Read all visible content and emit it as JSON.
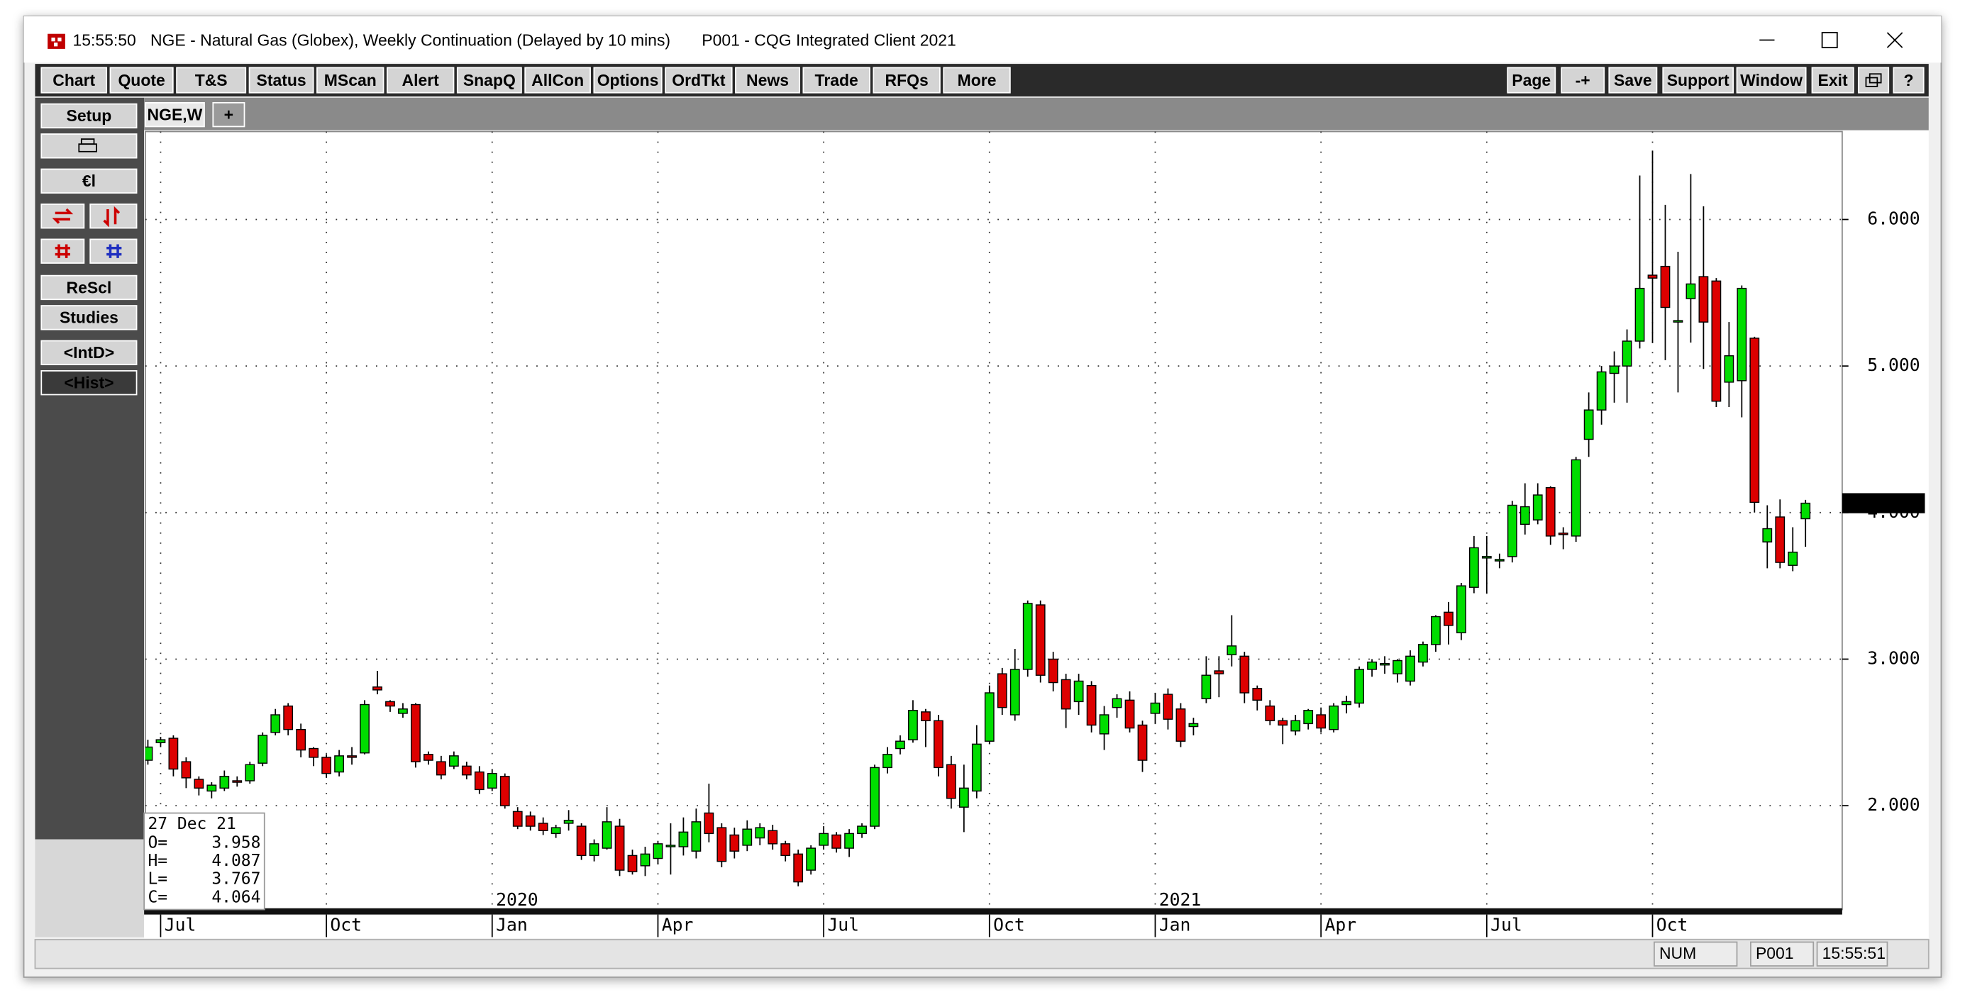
{
  "window": {
    "time": "15:55:50",
    "title": "NGE - Natural Gas (Globex), Weekly Continuation (Delayed by 10 mins)",
    "client": "P001 - CQG Integrated Client 2021"
  },
  "toolbar": {
    "left": [
      "Chart",
      "Quote",
      "T&S",
      "Status",
      "MScan",
      "Alert",
      "SnapQ",
      "AllCon",
      "Options",
      "OrdTkt",
      "News",
      "Trade",
      "RFQs",
      "More"
    ],
    "right": [
      "Page",
      "-+",
      "Save",
      "Support",
      "Window",
      "Exit"
    ]
  },
  "sidebar": [
    "Setup",
    "€l",
    "ReScl",
    "Studies",
    "<IntD>",
    "<Hist>"
  ],
  "tabs": [
    "NGE,W",
    "+"
  ],
  "status": [
    "NUM",
    "P001",
    "15:55:51"
  ],
  "chart_data": {
    "type": "candlestick",
    "up_color": "#00dd00",
    "down_color": "#dd0000",
    "ylim": [
      1.3,
      6.6
    ],
    "yticks": [
      {
        "value": 2,
        "label": "2.000"
      },
      {
        "value": 3,
        "label": "3.000"
      },
      {
        "value": 4,
        "label": "4.000"
      },
      {
        "value": 5,
        "label": "5.000"
      },
      {
        "value": 6,
        "label": "6.000"
      }
    ],
    "xticks": [
      {
        "value": 1,
        "label": "Jul"
      },
      {
        "value": 14,
        "label": "Oct"
      },
      {
        "value": 27,
        "label": "Jan"
      },
      {
        "value": 40,
        "label": "Apr"
      },
      {
        "value": 53,
        "label": "Jul"
      },
      {
        "value": 66,
        "label": "Oct"
      },
      {
        "value": 79,
        "label": "Jan"
      },
      {
        "value": 92,
        "label": "Apr"
      },
      {
        "value": 105,
        "label": "Jul"
      },
      {
        "value": 118,
        "label": "Oct"
      }
    ],
    "year_labels": [
      {
        "value": 27,
        "label": "2020"
      },
      {
        "value": 79,
        "label": "2021"
      }
    ],
    "grid": true,
    "info": {
      "date": "27 Dec 21",
      "labels": [
        "O=",
        "H=",
        "L=",
        "C="
      ]
    },
    "open": [
      2.31,
      2.43,
      2.46,
      2.3,
      2.18,
      2.1,
      2.12,
      2.17,
      2.17,
      2.29,
      2.5,
      2.68,
      2.52,
      2.39,
      2.33,
      2.23,
      2.34,
      2.36,
      2.81,
      2.71,
      2.63,
      2.69,
      2.35,
      2.3,
      2.27,
      2.27,
      2.23,
      2.12,
      2.2,
      1.96,
      1.93,
      1.88,
      1.81,
      1.88,
      1.86,
      1.66,
      1.71,
      1.86,
      1.66,
      1.59,
      1.64,
      1.72,
      1.72,
      1.69,
      1.95,
      1.85,
      1.8,
      1.73,
      1.78,
      1.83,
      1.74,
      1.67,
      1.56,
      1.73,
      1.8,
      1.71,
      1.81,
      1.86,
      2.26,
      2.39,
      2.45,
      2.64,
      2.58,
      2.28,
      1.99,
      2.1,
      2.44,
      2.9,
      2.62,
      2.93,
      3.37,
      3.0,
      2.86,
      2.71,
      2.82,
      2.49,
      2.67,
      2.72,
      2.55,
      2.63,
      2.76,
      2.66,
      2.54,
      2.73,
      2.92,
      3.03,
      3.02,
      2.8,
      2.68,
      2.58,
      2.51,
      2.56,
      2.62,
      2.52,
      2.69,
      2.7,
      2.93,
      2.96,
      2.9,
      2.85,
      2.98,
      3.1,
      3.32,
      3.18,
      3.49,
      3.69,
      3.67,
      3.7,
      3.92,
      3.95,
      4.17,
      3.86,
      3.84,
      4.5,
      4.7,
      4.95,
      5.0,
      5.17,
      5.62,
      5.68,
      5.3,
      5.46,
      5.61,
      5.58,
      4.89,
      4.9,
      5.19,
      3.8,
      3.97,
      3.64,
      3.958
    ],
    "high": [
      2.45,
      2.47,
      2.48,
      2.33,
      2.2,
      2.16,
      2.24,
      2.2,
      2.3,
      2.5,
      2.66,
      2.7,
      2.56,
      2.4,
      2.35,
      2.38,
      2.4,
      2.72,
      2.92,
      2.72,
      2.7,
      2.7,
      2.37,
      2.34,
      2.37,
      2.3,
      2.27,
      2.25,
      2.22,
      1.99,
      1.96,
      1.92,
      1.87,
      1.97,
      1.88,
      1.77,
      1.99,
      1.91,
      1.7,
      1.72,
      1.76,
      1.88,
      1.92,
      1.98,
      2.15,
      1.88,
      1.85,
      1.9,
      1.88,
      1.87,
      1.76,
      1.7,
      1.73,
      1.86,
      1.82,
      1.84,
      1.88,
      2.28,
      2.4,
      2.48,
      2.72,
      2.66,
      2.62,
      2.34,
      2.28,
      2.55,
      2.82,
      2.94,
      3.07,
      3.4,
      3.4,
      3.05,
      2.9,
      2.9,
      2.85,
      2.68,
      2.76,
      2.78,
      2.58,
      2.77,
      2.8,
      2.7,
      2.6,
      3.02,
      3.02,
      3.3,
      3.05,
      2.82,
      2.72,
      2.6,
      2.62,
      2.66,
      2.67,
      2.7,
      2.75,
      2.95,
      3.0,
      3.02,
      3.0,
      3.06,
      3.12,
      3.3,
      3.39,
      3.52,
      3.84,
      3.84,
      3.72,
      4.08,
      4.2,
      4.2,
      4.18,
      3.9,
      4.38,
      4.82,
      5.0,
      5.1,
      5.25,
      6.3,
      6.47,
      6.1,
      5.78,
      6.31,
      6.09,
      5.6,
      5.3,
      5.55,
      5.2,
      4.05,
      4.09,
      3.9,
      4.087
    ],
    "low": [
      2.28,
      2.4,
      2.2,
      2.12,
      2.07,
      2.05,
      2.1,
      2.13,
      2.15,
      2.27,
      2.48,
      2.48,
      2.33,
      2.27,
      2.19,
      2.2,
      2.28,
      2.35,
      2.76,
      2.64,
      2.6,
      2.26,
      2.28,
      2.18,
      2.25,
      2.18,
      2.08,
      2.1,
      1.98,
      1.84,
      1.83,
      1.8,
      1.78,
      1.83,
      1.63,
      1.62,
      1.7,
      1.52,
      1.53,
      1.52,
      1.6,
      1.53,
      1.66,
      1.64,
      1.75,
      1.58,
      1.64,
      1.69,
      1.73,
      1.7,
      1.62,
      1.45,
      1.53,
      1.7,
      1.68,
      1.65,
      1.78,
      1.84,
      2.22,
      2.35,
      2.43,
      2.4,
      2.2,
      1.98,
      1.82,
      2.05,
      2.42,
      2.62,
      2.58,
      2.88,
      2.84,
      2.78,
      2.53,
      2.62,
      2.5,
      2.38,
      2.6,
      2.5,
      2.23,
      2.56,
      2.52,
      2.4,
      2.48,
      2.7,
      2.74,
      2.95,
      2.7,
      2.65,
      2.55,
      2.42,
      2.48,
      2.52,
      2.5,
      2.5,
      2.63,
      2.67,
      2.88,
      2.9,
      2.84,
      2.82,
      2.95,
      3.05,
      3.1,
      3.13,
      3.45,
      3.45,
      3.62,
      3.66,
      3.85,
      3.92,
      3.78,
      3.75,
      3.8,
      4.38,
      4.6,
      4.75,
      4.75,
      5.12,
      5.16,
      5.04,
      4.82,
      5.16,
      4.98,
      4.72,
      4.72,
      4.65,
      4.0,
      3.62,
      3.62,
      3.6,
      3.767
    ],
    "close": [
      2.4,
      2.45,
      2.25,
      2.19,
      2.12,
      2.14,
      2.2,
      2.16,
      2.28,
      2.48,
      2.62,
      2.52,
      2.38,
      2.33,
      2.22,
      2.34,
      2.33,
      2.69,
      2.79,
      2.68,
      2.66,
      2.3,
      2.31,
      2.21,
      2.34,
      2.21,
      2.11,
      2.22,
      2.0,
      1.86,
      1.86,
      1.83,
      1.85,
      1.9,
      1.66,
      1.74,
      1.89,
      1.56,
      1.55,
      1.67,
      1.74,
      1.73,
      1.82,
      1.89,
      1.81,
      1.62,
      1.69,
      1.84,
      1.85,
      1.74,
      1.66,
      1.48,
      1.71,
      1.81,
      1.71,
      1.81,
      1.86,
      2.26,
      2.35,
      2.44,
      2.65,
      2.58,
      2.26,
      2.05,
      2.12,
      2.42,
      2.77,
      2.67,
      2.93,
      3.38,
      2.89,
      2.84,
      2.66,
      2.85,
      2.55,
      2.62,
      2.73,
      2.53,
      2.31,
      2.7,
      2.59,
      2.44,
      2.56,
      2.89,
      2.9,
      3.09,
      2.77,
      2.72,
      2.58,
      2.55,
      2.58,
      2.65,
      2.53,
      2.68,
      2.71,
      2.93,
      2.98,
      2.97,
      2.99,
      3.02,
      3.1,
      3.29,
      3.23,
      3.5,
      3.76,
      3.7,
      3.68,
      4.05,
      4.04,
      4.12,
      3.84,
      3.85,
      4.36,
      4.7,
      4.96,
      5.0,
      5.17,
      5.53,
      5.6,
      5.4,
      5.31,
      5.56,
      5.3,
      4.76,
      5.07,
      5.53,
      4.07,
      3.89,
      3.66,
      3.73,
      4.064
    ]
  }
}
